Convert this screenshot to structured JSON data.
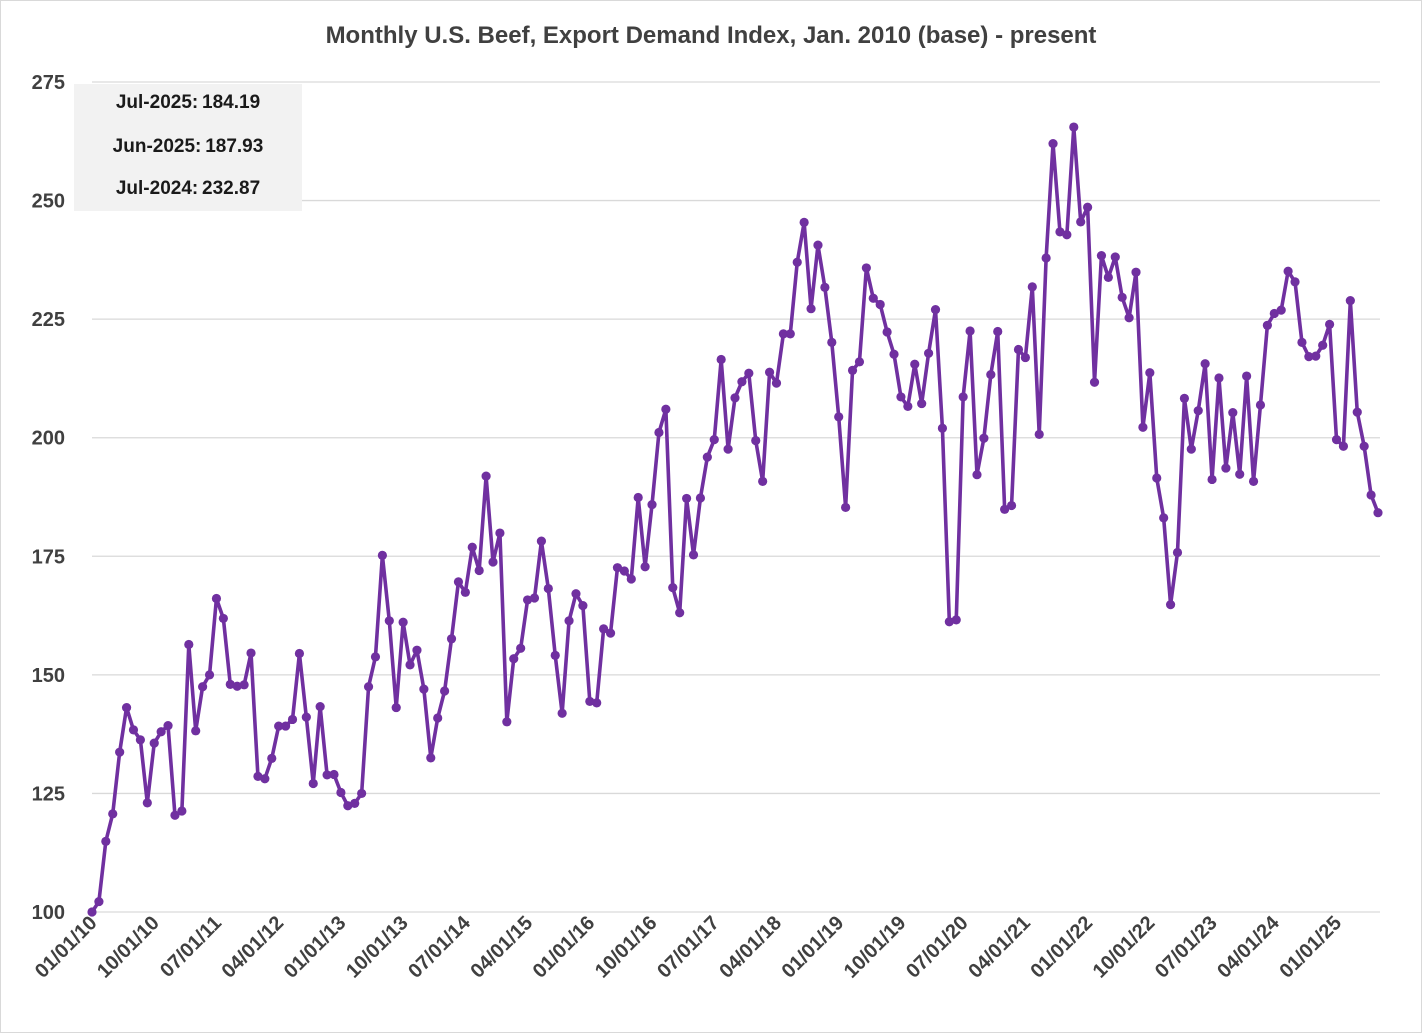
{
  "chart_data": {
    "type": "line",
    "title": "Monthly U.S. Beef, Export Demand Index, Jan. 2010 (base) - present",
    "xlabel": "",
    "ylabel": "",
    "ylim": [
      100,
      275
    ],
    "yticks": [
      100,
      125,
      150,
      175,
      200,
      225,
      250,
      275
    ],
    "xtick_labels": [
      "01/01/10",
      "10/01/10",
      "07/01/11",
      "04/01/12",
      "01/01/13",
      "10/01/13",
      "07/01/14",
      "04/01/15",
      "01/01/16",
      "10/01/16",
      "07/01/17",
      "04/01/18",
      "01/01/19",
      "10/01/19",
      "07/01/20",
      "04/01/21",
      "01/01/22",
      "10/01/22",
      "07/01/23",
      "04/01/24",
      "01/01/25"
    ],
    "grid": true,
    "legend": "none",
    "line_color": "#7030a0",
    "x_start": "2010-01",
    "x_end": "2025-07",
    "series": [
      {
        "values": [
          100.0,
          102.2,
          114.9,
          120.7,
          133.7,
          143.1,
          138.4,
          136.3,
          123.0,
          135.6,
          138.0,
          139.3,
          120.4,
          121.3,
          156.4,
          138.2,
          147.5,
          150.0,
          166.1,
          161.9,
          148.0,
          147.6,
          147.9,
          154.6,
          128.6,
          128.1,
          132.4,
          139.2,
          139.2,
          140.6,
          154.5,
          141.1,
          127.1,
          143.3,
          128.9,
          129.0,
          125.2,
          122.4,
          122.9,
          125.0,
          147.5,
          153.8,
          175.2,
          161.4,
          143.1,
          161.1,
          152.1,
          155.2,
          147.0,
          132.5,
          140.9,
          146.6,
          157.6,
          169.6,
          167.4,
          176.9,
          172.0,
          191.9,
          173.8,
          179.9,
          140.1,
          153.4,
          155.6,
          165.8,
          166.2,
          178.2,
          168.2,
          154.1,
          141.9,
          161.4,
          167.1,
          164.6,
          144.4,
          144.1,
          159.7,
          158.8,
          172.6,
          171.9,
          170.2,
          187.4,
          172.8,
          185.9,
          201.1,
          206.0,
          168.4,
          163.1,
          187.2,
          175.3,
          187.3,
          195.9,
          199.6,
          216.5,
          197.6,
          208.4,
          211.8,
          213.6,
          199.4,
          190.8,
          213.8,
          211.5,
          221.9,
          221.9,
          237.0,
          245.4,
          227.2,
          240.6,
          231.7,
          220.1,
          204.4,
          185.3,
          214.2,
          216.0,
          235.8,
          229.4,
          228.1,
          222.3,
          217.6,
          208.6,
          206.6,
          215.5,
          207.2,
          217.8,
          227.0,
          202.0,
          161.2,
          161.6,
          208.6,
          222.5,
          192.2,
          199.9,
          213.3,
          222.4,
          184.9,
          185.7,
          218.6,
          216.9,
          231.8,
          200.7,
          237.9,
          262.0,
          243.4,
          242.8,
          265.5,
          245.5,
          248.6,
          211.7,
          238.4,
          233.8,
          238.1,
          229.6,
          225.3,
          234.9,
          202.2,
          213.7,
          191.5,
          183.1,
          164.8,
          175.8,
          208.3,
          197.6,
          205.7,
          215.6,
          191.2,
          212.6,
          193.6,
          205.3,
          192.3,
          213.0,
          190.8,
          206.9,
          223.7,
          226.2,
          226.9,
          235.1,
          232.87,
          220.1,
          217.1,
          217.2,
          219.5,
          223.9,
          199.6,
          198.2,
          228.9,
          205.4,
          198.2,
          187.93,
          184.19
        ]
      }
    ]
  },
  "annotations": [
    {
      "label": "Jul-2025:",
      "value": "184.19"
    },
    {
      "label": "Jun-2025:",
      "value": "187.93"
    },
    {
      "label": "Jul-2024:",
      "value": "232.87"
    }
  ]
}
